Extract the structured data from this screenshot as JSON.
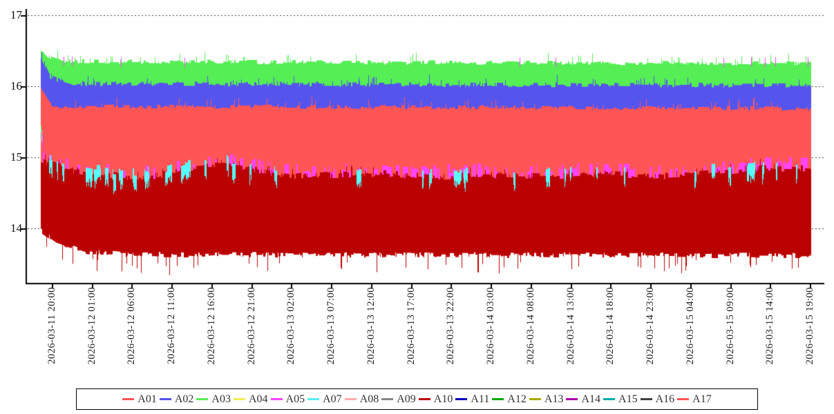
{
  "chart_data": {
    "type": "area",
    "title": "",
    "x_axis": {
      "labels": [
        "2026-03-11 20:00",
        "2026-03-12 01:00",
        "2026-03-12 06:00",
        "2026-03-12 11:00",
        "2026-03-12 16:00",
        "2026-03-12 21:00",
        "2026-03-13 02:00",
        "2026-03-13 07:00",
        "2026-03-13 12:00",
        "2026-03-13 17:00",
        "2026-03-13 22:00",
        "2026-03-14 03:00",
        "2026-03-14 08:00",
        "2026-03-14 13:00",
        "2026-03-14 18:00",
        "2026-03-14 23:00",
        "2026-03-15 04:00",
        "2026-03-15 09:00",
        "2026-03-15 14:00",
        "2026-03-15 19:00"
      ],
      "tick_interval": "5 hours"
    },
    "y_axis": {
      "tick_labels": [
        "17",
        "16",
        "15",
        "14"
      ],
      "tick_values": [
        17,
        16,
        15,
        14
      ],
      "range_displayed": [
        13.2,
        17.1
      ]
    },
    "grid": "horizontal dashed",
    "legend": {
      "position": "bottom",
      "entries": [
        {
          "name": "A01",
          "color": "#ff5555"
        },
        {
          "name": "A02",
          "color": "#5555ee"
        },
        {
          "name": "A03",
          "color": "#55ee55"
        },
        {
          "name": "A04",
          "color": "#eeee55"
        },
        {
          "name": "A05",
          "color": "#ff44ff"
        },
        {
          "name": "A07",
          "color": "#55eeee"
        },
        {
          "name": "A08",
          "color": "#ffaaaa"
        },
        {
          "name": "A09",
          "color": "#888888"
        },
        {
          "name": "A10",
          "color": "#bb0000"
        },
        {
          "name": "A11",
          "color": "#0000bb"
        },
        {
          "name": "A12",
          "color": "#00aa00"
        },
        {
          "name": "A13",
          "color": "#aaaa00"
        },
        {
          "name": "A14",
          "color": "#aa00aa"
        },
        {
          "name": "A15",
          "color": "#00aaaa"
        },
        {
          "name": "A16",
          "color": "#3f3f3f"
        },
        {
          "name": "A17",
          "color": "#ff5555"
        }
      ]
    },
    "boundary_env": [
      [
        0,
        15.02
      ],
      [
        0.014,
        14.95
      ],
      [
        0.046,
        14.85
      ],
      [
        0.082,
        14.8
      ],
      [
        0.127,
        14.77
      ],
      [
        0.162,
        14.81
      ],
      [
        0.198,
        14.92
      ],
      [
        0.243,
        14.94
      ],
      [
        0.279,
        14.88
      ],
      [
        0.324,
        14.79
      ],
      [
        0.396,
        14.8
      ],
      [
        0.45,
        14.82
      ],
      [
        0.504,
        14.78
      ],
      [
        0.575,
        14.8
      ],
      [
        0.647,
        14.78
      ],
      [
        0.719,
        14.82
      ],
      [
        0.791,
        14.78
      ],
      [
        0.845,
        14.8
      ],
      [
        0.898,
        14.85
      ],
      [
        0.934,
        14.9
      ],
      [
        0.97,
        14.9
      ],
      [
        1,
        14.88
      ]
    ],
    "series": [
      {
        "name": "A01",
        "color": "#ff5555",
        "visible": true,
        "style": "band",
        "top_env": [
          [
            0,
            15.98
          ],
          [
            0.015,
            15.72
          ],
          [
            1,
            15.69
          ]
        ],
        "noise": 0.03,
        "spike_p": 0.04,
        "spike": 0.1,
        "bottom_follow": -0.15
      },
      {
        "name": "A02",
        "color": "#5555ee",
        "visible": true,
        "style": "band",
        "top_env": [
          [
            0,
            16.42
          ],
          [
            0.012,
            16.12
          ],
          [
            0.04,
            16.04
          ],
          [
            1,
            16.01
          ]
        ],
        "noise": 0.035,
        "spike_p": 0.05,
        "spike": 0.09,
        "bottom_const": 15.3
      },
      {
        "name": "A03",
        "color": "#55ee55",
        "visible": true,
        "style": "band",
        "top_env": [
          [
            0,
            16.5
          ],
          [
            0.01,
            16.42
          ],
          [
            0.03,
            16.35
          ],
          [
            1,
            16.32
          ]
        ],
        "noise": 0.03,
        "spike_p": 0.04,
        "spike": 0.1,
        "bottom_const": 15.85
      },
      {
        "name": "A04",
        "color": "#eeee55",
        "visible": false
      },
      {
        "name": "A05",
        "color": "#ff44ff",
        "visible": true,
        "style": "flicker-band",
        "top_follow": 0.05,
        "noise": 0.07,
        "thickness": 0.16,
        "thickness_var": 0.12,
        "gate_zones": [
          [
            0,
            0.3
          ],
          [
            0.24,
            0.62
          ],
          [
            0.3,
            0.5
          ],
          [
            0.46,
            0.62
          ],
          [
            0.58,
            0.5
          ],
          [
            0.88,
            0.72
          ]
        ],
        "spike_top": {
          "value": 16.42,
          "p": 0.006,
          "p_late": 0.05,
          "late_t": 0.92
        }
      },
      {
        "name": "A07",
        "color": "#55ffff",
        "visible": true,
        "style": "flicker-band",
        "top_follow": 0.03,
        "noise": 0.06,
        "thickness": 0.14,
        "thickness_var": 0.14,
        "gate_zones": [
          [
            0,
            0.3
          ],
          [
            0.2,
            0.12
          ],
          [
            0.86,
            0.2
          ]
        ]
      },
      {
        "name": "A08",
        "color": "#ffaaaa",
        "visible": false
      },
      {
        "name": "A09",
        "color": "#888888",
        "visible": false
      },
      {
        "name": "A10",
        "color": "#bb0000",
        "visible": true,
        "style": "band",
        "top_follow": -0.05,
        "noise": 0.05,
        "spike_p": 0.05,
        "spike": 0.07,
        "bottom_env": [
          [
            0,
            13.97
          ],
          [
            0.02,
            13.82
          ],
          [
            0.06,
            13.67
          ],
          [
            0.12,
            13.63
          ],
          [
            1,
            13.62
          ]
        ],
        "bottom_noise": 0.04,
        "bottom_spike_p": 0.05,
        "bottom_spike": 0.22
      },
      {
        "name": "A11",
        "color": "#0000bb",
        "visible": false
      },
      {
        "name": "A12",
        "color": "#00aa00",
        "visible": false
      },
      {
        "name": "A13",
        "color": "#aaaa00",
        "visible": false
      },
      {
        "name": "A14",
        "color": "#aa00aa",
        "visible": false
      },
      {
        "name": "A15",
        "color": "#00aaaa",
        "visible": false
      },
      {
        "name": "A16",
        "color": "#3f3f3f",
        "visible": false
      },
      {
        "name": "A17",
        "color": "#ff5555",
        "visible": false
      }
    ],
    "start_marks": [
      {
        "x": 59,
        "color": "#55ee55",
        "v1": 15.45,
        "v2": 15.36
      },
      {
        "x": 60,
        "color": "#55ffff",
        "v1": 15.38,
        "v2": 15.22
      },
      {
        "x": 61,
        "color": "#ff44ff",
        "v1": 15.3,
        "v2": 15.12
      }
    ],
    "render": {
      "seed": 11,
      "draw_order": [
        "A03",
        "A02",
        "A01",
        "A05",
        "A10",
        "A07"
      ]
    }
  }
}
